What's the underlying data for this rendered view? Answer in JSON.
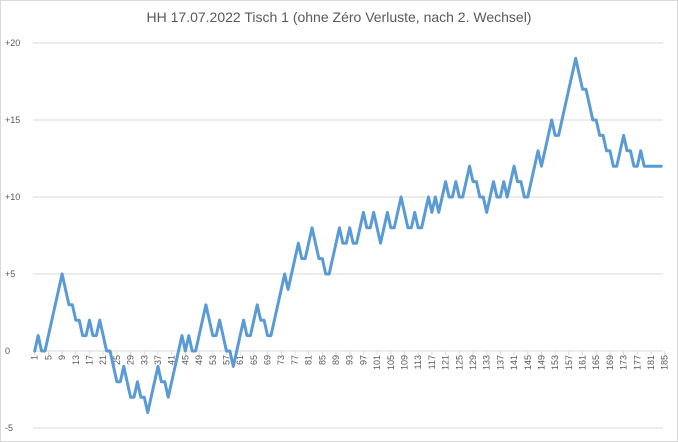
{
  "chart_data": {
    "type": "line",
    "title": "HH 17.07.2022 Tisch 1 (ohne Zéro Verluste, nach 2. Wechsel)",
    "xlabel": "",
    "ylabel": "",
    "ylim": [
      -5,
      20
    ],
    "yticks": [
      -5,
      0,
      5,
      10,
      15,
      20
    ],
    "ytick_labels": [
      "-5",
      "0",
      "+5",
      "+10",
      "+15",
      "+20"
    ],
    "xticks": [
      1,
      5,
      9,
      13,
      17,
      21,
      25,
      29,
      33,
      37,
      41,
      45,
      49,
      53,
      57,
      61,
      65,
      69,
      73,
      77,
      81,
      85,
      89,
      93,
      97,
      101,
      105,
      109,
      113,
      117,
      121,
      125,
      129,
      133,
      137,
      141,
      145,
      149,
      153,
      157,
      161,
      165,
      169,
      173,
      177,
      181,
      185
    ],
    "grid": true,
    "legend": "none",
    "color": "#5b9bd5",
    "series": [
      {
        "values": [
          0,
          1,
          0,
          0,
          1,
          2,
          3,
          4,
          5,
          4,
          3,
          3,
          2,
          2,
          1,
          1,
          2,
          1,
          1,
          2,
          1,
          0,
          0,
          -1,
          -2,
          -2,
          -1,
          -2,
          -3,
          -3,
          -2,
          -3,
          -3,
          -4,
          -3,
          -2,
          -1,
          -2,
          -2,
          -3,
          -2,
          -1,
          0,
          1,
          0,
          1,
          0,
          0,
          1,
          2,
          3,
          2,
          1,
          1,
          2,
          1,
          0,
          0,
          -1,
          0,
          1,
          2,
          1,
          1,
          2,
          3,
          2,
          2,
          1,
          1,
          2,
          3,
          4,
          5,
          4,
          5,
          6,
          7,
          6,
          6,
          7,
          8,
          7,
          6,
          6,
          5,
          5,
          6,
          7,
          8,
          7,
          7,
          8,
          7,
          7,
          8,
          9,
          8,
          8,
          9,
          8,
          7,
          8,
          9,
          8,
          8,
          9,
          10,
          9,
          8,
          8,
          9,
          8,
          8,
          9,
          10,
          9,
          10,
          9,
          10,
          11,
          10,
          10,
          11,
          10,
          10,
          11,
          12,
          11,
          11,
          10,
          10,
          9,
          10,
          11,
          10,
          10,
          11,
          10,
          11,
          12,
          11,
          11,
          10,
          10,
          11,
          12,
          13,
          12,
          13,
          14,
          15,
          14,
          14,
          15,
          16,
          17,
          18,
          19,
          18,
          17,
          17,
          16,
          15,
          15,
          14,
          14,
          13,
          13,
          12,
          12,
          13,
          14,
          13,
          13,
          12,
          12,
          13,
          12,
          12,
          12,
          12,
          12,
          12
        ]
      }
    ]
  }
}
